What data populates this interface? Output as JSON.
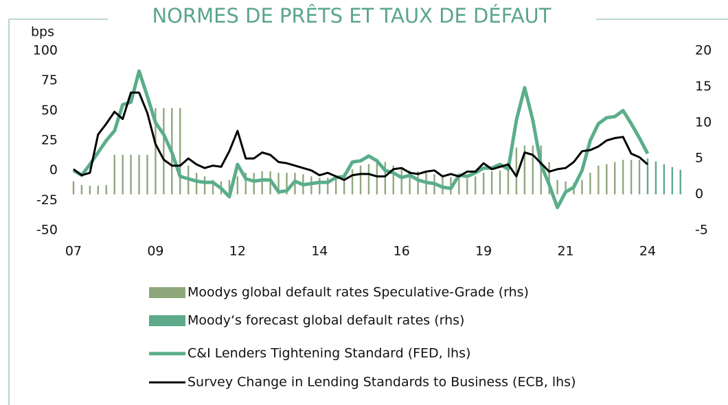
{
  "chart_data": {
    "type": "combo",
    "title": "NORMES DE PRÊTS ET TAUX DE DÉFAUT",
    "ylabel": "bps",
    "categories": [
      "07",
      null,
      null,
      null,
      null,
      null,
      null,
      null,
      null,
      null,
      "09",
      null,
      null,
      null,
      null,
      null,
      null,
      null,
      null,
      null,
      "12",
      null,
      null,
      null,
      null,
      null,
      null,
      null,
      null,
      null,
      "14",
      null,
      null,
      null,
      null,
      null,
      null,
      null,
      null,
      null,
      "16",
      null,
      null,
      null,
      null,
      null,
      null,
      null,
      null,
      null,
      "19",
      null,
      null,
      null,
      null,
      null,
      null,
      null,
      null,
      null,
      "21",
      null,
      null,
      null,
      null,
      null,
      null,
      null,
      null,
      null,
      "24",
      null,
      null,
      null,
      null
    ],
    "ylim": [
      -50,
      100
    ],
    "yticks": [
      -50,
      -25,
      0,
      25,
      50,
      75,
      100
    ],
    "y2lim": [
      -5,
      20
    ],
    "y2ticks": [
      -5,
      0,
      5,
      10,
      15,
      20
    ],
    "grid": false,
    "series": [
      {
        "name": "Moodys global default rates Speculative-Grade (rhs)",
        "type": "bar",
        "axis": "y2",
        "color": "#8ea87c",
        "values": [
          1.8,
          1.3,
          1.2,
          1.2,
          1.3,
          5.5,
          5.5,
          5.5,
          5.5,
          5.5,
          12,
          12,
          12,
          12,
          4,
          3,
          2.5,
          2,
          1.8,
          2,
          2.5,
          3,
          3,
          3.2,
          3.2,
          3,
          3,
          3,
          2.8,
          2.5,
          2.3,
          2.3,
          2.5,
          3,
          3.5,
          4,
          4.2,
          4.5,
          4.5,
          4,
          3.5,
          3.3,
          3.2,
          3,
          2.8,
          2.5,
          2.4,
          2.3,
          2.2,
          2.5,
          3,
          3.2,
          3.3,
          4.5,
          6.5,
          6.8,
          6.8,
          6.8,
          4.5,
          2,
          1.8,
          1.6,
          2,
          3,
          4,
          4.2,
          4.5,
          4.8,
          4.8,
          4.8,
          null,
          null,
          null,
          null,
          null
        ]
      },
      {
        "name": "Moody‘s forecast global default rates (rhs)",
        "type": "bar",
        "axis": "y2",
        "color": "#5ea98a",
        "values": [
          null,
          null,
          null,
          null,
          null,
          null,
          null,
          null,
          null,
          null,
          null,
          null,
          null,
          null,
          null,
          null,
          null,
          null,
          null,
          null,
          null,
          null,
          null,
          null,
          null,
          null,
          null,
          null,
          null,
          null,
          null,
          null,
          null,
          null,
          null,
          null,
          null,
          null,
          null,
          null,
          null,
          null,
          null,
          null,
          null,
          null,
          null,
          null,
          null,
          null,
          null,
          null,
          null,
          null,
          null,
          null,
          null,
          null,
          null,
          null,
          null,
          null,
          null,
          null,
          null,
          null,
          null,
          null,
          null,
          null,
          5,
          4.6,
          4.2,
          3.8,
          3.4
        ]
      },
      {
        "name": "C&I Lenders Tightening Standard (FED, lhs)",
        "type": "line",
        "color": "#5aae8a",
        "values": [
          0,
          -4,
          5,
          15,
          25,
          33,
          55,
          57,
          83,
          62,
          40,
          30,
          15,
          -5,
          -7,
          -9,
          -10,
          -10,
          -15,
          -22,
          5,
          -7,
          -9,
          -8,
          -8,
          -18,
          -17,
          -9,
          -12,
          -11,
          -10,
          -10,
          -6,
          -5,
          7,
          8,
          12,
          8,
          0,
          -2,
          -6,
          -4,
          -8,
          -10,
          -11,
          -14,
          -15,
          -4,
          -5,
          -2,
          2,
          2,
          5,
          1,
          42,
          69,
          42,
          5,
          -12,
          -31,
          -18,
          -14,
          0,
          25,
          39,
          44,
          45,
          50,
          39,
          27,
          14,
          null,
          null,
          null,
          null
        ]
      },
      {
        "name": "Survey Change in Lending Standards to Business (ECB, lhs)",
        "type": "line",
        "color": "#000000",
        "values": [
          1,
          -4,
          -2,
          30,
          39,
          49,
          43,
          65,
          65,
          48,
          22,
          9,
          4,
          4,
          10,
          5,
          2,
          4,
          3,
          16,
          33,
          10,
          10,
          15,
          13,
          7,
          6,
          4,
          2,
          0,
          -4,
          -2,
          -5,
          -8,
          -4,
          -3,
          -3,
          -5,
          -5,
          1,
          2,
          -2,
          -3,
          -1,
          0,
          -5,
          -3,
          -5,
          -1,
          -1,
          6,
          1,
          3,
          5,
          -5,
          15,
          13,
          6,
          -1,
          1,
          2,
          7,
          16,
          17,
          20,
          25,
          27,
          28,
          14,
          11,
          5,
          null,
          null,
          null,
          null
        ]
      }
    ]
  }
}
